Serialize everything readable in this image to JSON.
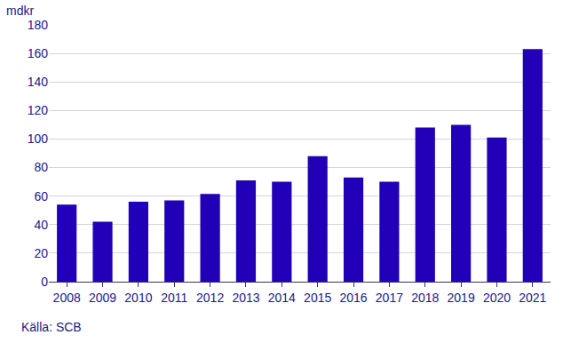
{
  "chart_data": {
    "type": "bar",
    "ylabel": "mdkr",
    "annotations": [
      "Källa: SCB"
    ],
    "categories": [
      "2008",
      "2009",
      "2010",
      "2011",
      "2012",
      "2013",
      "2014",
      "2015",
      "2016",
      "2017",
      "2018",
      "2019",
      "2020",
      "2021"
    ],
    "values": [
      54,
      42,
      56,
      57,
      61.5,
      71,
      70,
      88,
      73,
      70,
      108,
      110,
      101,
      163
    ],
    "color": "#2200b8",
    "ylim": [
      0,
      180
    ],
    "yticks": [
      0,
      20,
      40,
      60,
      80,
      100,
      120,
      140,
      160,
      180
    ],
    "grid": true
  }
}
